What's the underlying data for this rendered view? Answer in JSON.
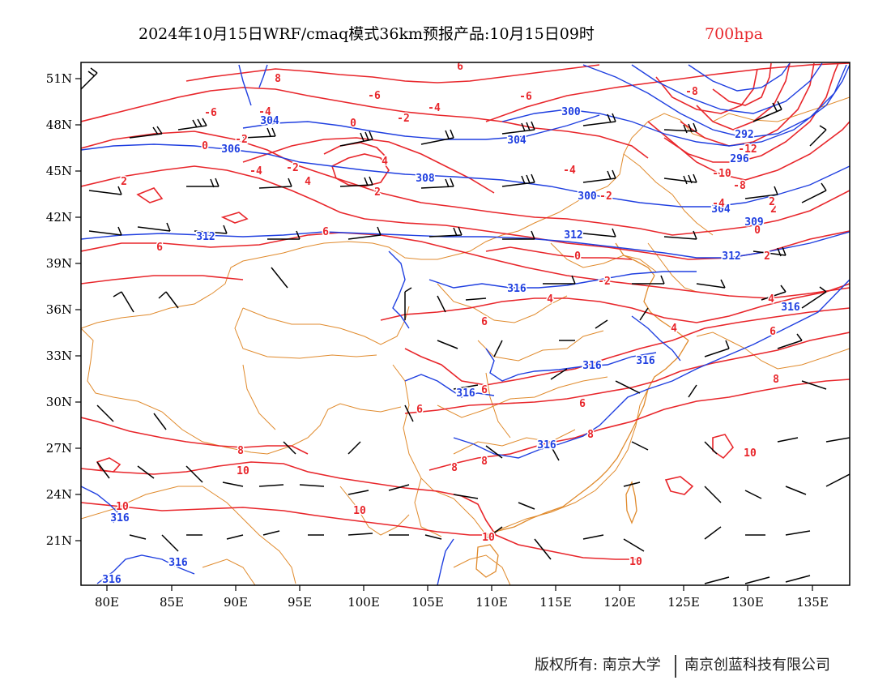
{
  "title": {
    "main": "2024年10月15日WRF/cmaq模式36km预报产品:10月15日09时",
    "level": "700hpa"
  },
  "axes": {
    "lon_labels": [
      "80E",
      "85E",
      "90E",
      "95E",
      "100E",
      "105E",
      "110E",
      "115E",
      "120E",
      "125E",
      "130E",
      "135E"
    ],
    "lat_labels": [
      "51N",
      "48N",
      "45N",
      "42N",
      "39N",
      "36N",
      "33N",
      "30N",
      "27N",
      "24N",
      "21N"
    ]
  },
  "colors": {
    "temperature": "#e8262b",
    "geopotential": "#1f3fe0",
    "boundary": "#e08a2c",
    "wind": "#000000"
  },
  "geopotential_labels": [
    "304",
    "306",
    "300",
    "304",
    "292",
    "296",
    "308",
    "300",
    "304",
    "309",
    "312",
    "312",
    "312",
    "316",
    "316",
    "316",
    "316",
    "316",
    "316",
    "316",
    "316",
    "316"
  ],
  "temperature_labels": [
    "6",
    "8",
    "-6",
    "-6",
    "-4",
    "-2",
    "-4",
    "0",
    "-2",
    "0",
    "-8",
    "-6",
    "4",
    "-2",
    "-12",
    "-10",
    "2",
    "-4",
    "4",
    "2",
    "-2",
    "-8",
    "-4",
    "2",
    "-4",
    "6",
    "2",
    "0",
    "-2",
    "0",
    "2",
    "4",
    "4",
    "6",
    "4",
    "6",
    "6",
    "6",
    "8",
    "6",
    "6",
    "8",
    "8",
    "8",
    "8",
    "10",
    "10",
    "10",
    "10",
    "10",
    "10"
  ],
  "footer": {
    "left": "版权所有: 南京大学",
    "right": "南京创蓝科技有限公司"
  }
}
